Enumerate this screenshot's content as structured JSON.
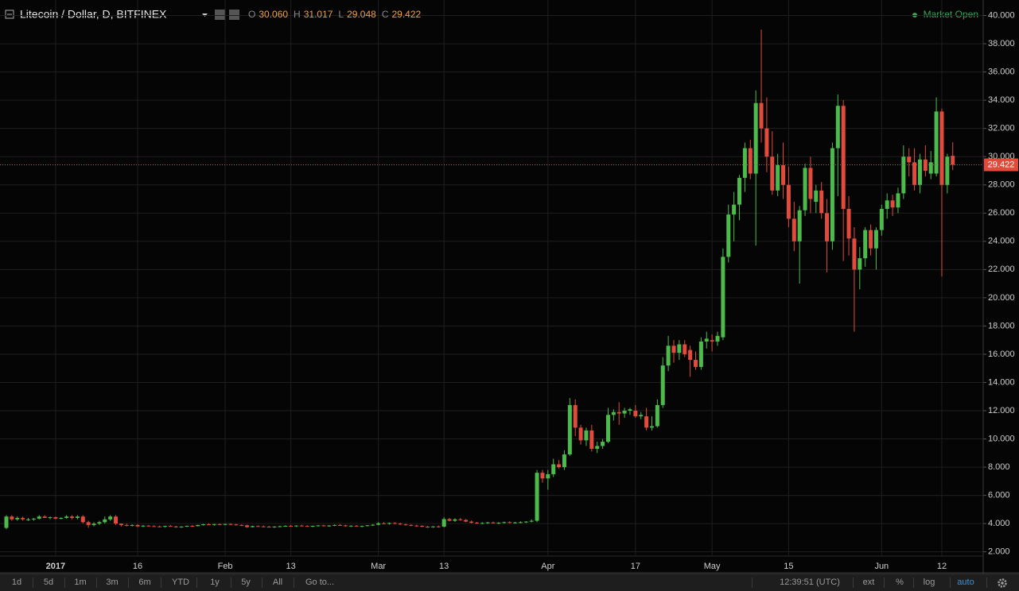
{
  "chart_data": {
    "type": "candlestick",
    "title": "Litecoin / Dollar, D, BITFINEX",
    "legend_values": [
      {
        "key": "O",
        "value": "30.060"
      },
      {
        "key": "H",
        "value": "31.017"
      },
      {
        "key": "L",
        "value": "29.048"
      },
      {
        "key": "C",
        "value": "29.422"
      }
    ],
    "status": "Market Open",
    "up_color": "#4cbb4c",
    "down_color": "#e04b3b",
    "price_line_color": "#e04b3b",
    "grid": true,
    "categories": [
      null,
      null,
      null,
      null,
      null,
      null,
      null,
      null,
      null,
      "2017",
      null,
      null,
      null,
      null,
      null,
      null,
      null,
      null,
      null,
      null,
      null,
      null,
      null,
      null,
      "16",
      null,
      null,
      null,
      null,
      null,
      null,
      null,
      null,
      null,
      null,
      null,
      null,
      null,
      null,
      null,
      "Feb",
      null,
      null,
      null,
      null,
      null,
      null,
      null,
      null,
      null,
      null,
      null,
      "13",
      null,
      null,
      null,
      null,
      null,
      null,
      null,
      null,
      null,
      null,
      null,
      null,
      null,
      null,
      null,
      "Mar",
      null,
      null,
      null,
      null,
      null,
      null,
      null,
      null,
      null,
      null,
      null,
      "13",
      null,
      null,
      null,
      null,
      null,
      null,
      null,
      null,
      null,
      null,
      null,
      null,
      null,
      null,
      null,
      null,
      null,
      null,
      "Apr",
      null,
      null,
      null,
      null,
      null,
      null,
      null,
      null,
      null,
      null,
      null,
      null,
      null,
      null,
      null,
      "17",
      null,
      null,
      null,
      null,
      null,
      null,
      null,
      null,
      null,
      null,
      null,
      null,
      null,
      "May",
      null,
      null,
      null,
      null,
      null,
      null,
      null,
      null,
      null,
      null,
      null,
      null,
      null,
      "15",
      null,
      null,
      null,
      null,
      null,
      null,
      null,
      null,
      null,
      null,
      null,
      null,
      null,
      null,
      null,
      null,
      "Jun",
      null,
      null,
      null,
      null,
      null,
      null,
      null,
      null,
      null,
      null,
      "12",
      null,
      null
    ],
    "open": [
      3.7,
      4.5,
      4.3,
      4.4,
      4.3,
      4.3,
      4.35,
      4.5,
      4.4,
      4.45,
      4.35,
      4.4,
      4.5,
      4.4,
      4.5,
      4.1,
      3.9,
      4.0,
      4.1,
      4.3,
      4.5,
      4.0,
      3.9,
      3.85,
      3.9,
      3.8,
      3.85,
      3.82,
      3.8,
      3.78,
      3.83,
      3.8,
      3.74,
      3.79,
      3.84,
      3.82,
      3.9,
      3.95,
      3.92,
      3.96,
      3.93,
      3.97,
      3.94,
      3.9,
      3.88,
      3.75,
      3.82,
      3.8,
      3.78,
      3.76,
      3.79,
      3.81,
      3.84,
      3.82,
      3.86,
      3.83,
      3.8,
      3.84,
      3.87,
      3.82,
      3.86,
      3.9,
      3.87,
      3.82,
      3.85,
      3.8,
      3.83,
      3.88,
      3.92,
      4.02,
      3.98,
      4.04,
      4.0,
      3.94,
      3.9,
      3.86,
      3.84,
      3.78,
      3.76,
      3.8,
      3.78,
      4.32,
      4.2,
      4.3,
      4.26,
      4.14,
      4.06,
      4.02,
      4.04,
      4.08,
      4.02,
      4.06,
      4.1,
      4.05,
      4.08,
      4.1,
      4.14,
      4.2,
      7.6,
      7.2,
      7.5,
      8.2,
      8.0,
      8.9,
      12.4,
      10.8,
      9.9,
      10.6,
      9.3,
      9.5,
      9.8,
      11.7,
      11.9,
      11.8,
      12.0,
      12.0,
      11.6,
      11.6,
      10.8,
      10.9,
      12.4,
      15.2,
      16.6,
      16.1,
      16.7,
      16.3,
      15.6,
      15.1,
      16.9,
      17.0,
      16.9,
      17.2,
      22.9,
      25.9,
      26.6,
      28.5,
      30.6,
      28.8,
      33.8,
      32.0,
      30.0,
      27.6,
      29.4,
      28.0,
      25.6,
      24.0,
      26.2,
      29.2,
      26.8,
      27.6,
      26.0,
      24.0,
      30.6,
      33.6,
      26.3,
      24.2,
      22.0,
      22.8,
      24.8,
      23.5,
      24.8,
      26.3,
      26.9,
      26.4,
      27.4,
      30.0,
      29.6,
      28.0,
      29.8,
      28.8,
      28.8,
      33.2,
      28.0,
      30.06
    ],
    "high": [
      4.6,
      4.6,
      4.5,
      4.5,
      4.4,
      4.4,
      4.6,
      4.6,
      4.5,
      4.5,
      4.45,
      4.6,
      4.6,
      4.6,
      4.6,
      4.2,
      4.1,
      4.2,
      4.5,
      4.6,
      4.6,
      4.0,
      4.0,
      3.95,
      3.95,
      3.9,
      3.9,
      3.88,
      3.86,
      3.85,
      3.9,
      3.84,
      3.82,
      3.86,
      3.9,
      3.92,
      3.98,
      4.02,
      3.98,
      4.0,
      4.0,
      4.02,
      3.98,
      3.95,
      3.92,
      3.85,
      3.88,
      3.86,
      3.84,
      3.82,
      3.85,
      3.88,
      3.9,
      3.88,
      3.92,
      3.88,
      3.86,
      3.9,
      3.92,
      3.9,
      3.94,
      3.96,
      3.92,
      3.88,
      3.9,
      3.86,
      3.9,
      3.96,
      4.1,
      4.1,
      4.08,
      4.1,
      4.06,
      4.0,
      3.96,
      3.92,
      3.88,
      3.84,
      3.82,
      3.86,
      4.45,
      4.4,
      4.38,
      4.4,
      4.32,
      4.22,
      4.12,
      4.1,
      4.12,
      4.14,
      4.1,
      4.14,
      4.16,
      4.12,
      4.16,
      4.18,
      4.3,
      7.8,
      7.8,
      7.8,
      8.6,
      8.5,
      9.2,
      12.9,
      12.8,
      11.0,
      10.8,
      11.0,
      9.8,
      10.0,
      12.2,
      12.1,
      12.6,
      12.2,
      12.2,
      12.4,
      11.9,
      12.2,
      11.6,
      12.8,
      15.8,
      17.3,
      17.0,
      17.0,
      17.0,
      16.6,
      16.2,
      17.2,
      17.6,
      17.4,
      17.6,
      23.5,
      26.6,
      27.5,
      28.7,
      31.0,
      31.2,
      34.7,
      39.0,
      34.2,
      31.8,
      30.2,
      31.0,
      29.3,
      26.8,
      26.5,
      29.5,
      30.0,
      28.0,
      28.2,
      27.0,
      31.0,
      34.4,
      34.0,
      27.2,
      25.0,
      23.6,
      25.0,
      25.2,
      25.0,
      26.6,
      27.4,
      27.3,
      27.8,
      30.8,
      30.6,
      30.6,
      30.2,
      30.8,
      30.4,
      34.2,
      33.4,
      30.2,
      31.017
    ],
    "low": [
      3.6,
      4.2,
      4.2,
      4.2,
      4.2,
      4.2,
      4.3,
      4.4,
      4.3,
      4.3,
      4.3,
      4.35,
      4.3,
      4.3,
      4.0,
      3.7,
      3.8,
      3.9,
      4.0,
      4.2,
      3.9,
      3.8,
      3.8,
      3.8,
      3.75,
      3.75,
      3.8,
      3.76,
      3.74,
      3.72,
      3.78,
      3.7,
      3.7,
      3.75,
      3.8,
      3.8,
      3.86,
      3.9,
      3.85,
      3.9,
      3.88,
      3.9,
      3.86,
      3.82,
      3.7,
      3.72,
      3.78,
      3.74,
      3.72,
      3.7,
      3.74,
      3.78,
      3.8,
      3.76,
      3.8,
      3.78,
      3.74,
      3.8,
      3.8,
      3.78,
      3.82,
      3.84,
      3.78,
      3.76,
      3.78,
      3.74,
      3.8,
      3.84,
      3.88,
      3.94,
      3.92,
      3.96,
      3.9,
      3.86,
      3.82,
      3.78,
      3.74,
      3.7,
      3.7,
      3.72,
      3.74,
      4.15,
      4.12,
      4.2,
      4.1,
      4.02,
      3.98,
      3.96,
      3.98,
      4.0,
      3.96,
      4.0,
      4.02,
      4.0,
      4.02,
      4.04,
      4.08,
      4.1,
      6.9,
      6.4,
      7.3,
      7.9,
      7.8,
      8.8,
      10.2,
      9.6,
      9.5,
      9.1,
      9.0,
      9.3,
      9.7,
      11.3,
      11.0,
      11.5,
      11.7,
      11.5,
      11.4,
      10.6,
      10.6,
      10.8,
      12.2,
      14.8,
      15.4,
      15.6,
      15.8,
      14.4,
      14.9,
      14.9,
      16.4,
      16.2,
      16.6,
      17.0,
      22.5,
      24.0,
      25.5,
      27.5,
      28.4,
      23.7,
      31.0,
      28.9,
      27.3,
      27.2,
      27.0,
      25.0,
      23.3,
      21.0,
      25.8,
      26.0,
      26.0,
      25.6,
      21.8,
      23.4,
      27.2,
      22.6,
      23.0,
      17.6,
      20.6,
      22.2,
      23.0,
      22.0,
      24.4,
      25.6,
      25.8,
      26.0,
      27.0,
      28.6,
      27.6,
      27.4,
      28.6,
      28.4,
      28.6,
      21.5,
      27.4,
      29.048
    ],
    "close": [
      4.5,
      4.3,
      4.4,
      4.3,
      4.3,
      4.35,
      4.5,
      4.4,
      4.45,
      4.35,
      4.4,
      4.5,
      4.4,
      4.5,
      4.1,
      3.9,
      4.0,
      4.1,
      4.3,
      4.5,
      4.0,
      3.9,
      3.85,
      3.9,
      3.8,
      3.85,
      3.82,
      3.8,
      3.78,
      3.83,
      3.8,
      3.74,
      3.79,
      3.84,
      3.82,
      3.9,
      3.95,
      3.92,
      3.96,
      3.93,
      3.97,
      3.94,
      3.9,
      3.88,
      3.75,
      3.82,
      3.8,
      3.78,
      3.76,
      3.79,
      3.81,
      3.84,
      3.82,
      3.86,
      3.83,
      3.8,
      3.84,
      3.87,
      3.82,
      3.86,
      3.9,
      3.87,
      3.82,
      3.85,
      3.8,
      3.83,
      3.88,
      3.92,
      4.02,
      3.98,
      4.04,
      4.0,
      3.94,
      3.9,
      3.86,
      3.84,
      3.78,
      3.76,
      3.8,
      3.78,
      4.32,
      4.2,
      4.3,
      4.26,
      4.14,
      4.06,
      4.02,
      4.04,
      4.08,
      4.02,
      4.06,
      4.1,
      4.05,
      4.08,
      4.1,
      4.14,
      4.2,
      7.6,
      7.2,
      7.5,
      8.2,
      8.0,
      8.9,
      12.4,
      10.8,
      9.9,
      10.6,
      9.3,
      9.5,
      9.8,
      11.7,
      11.9,
      11.8,
      12.0,
      12.1,
      11.6,
      11.7,
      10.8,
      10.9,
      12.4,
      15.2,
      16.6,
      16.1,
      16.7,
      16.0,
      15.6,
      15.1,
      16.9,
      17.1,
      16.9,
      17.3,
      22.9,
      25.9,
      26.6,
      28.5,
      30.6,
      28.8,
      33.8,
      32.0,
      30.0,
      27.6,
      29.4,
      28.0,
      25.6,
      24.0,
      26.2,
      29.2,
      27.0,
      27.6,
      26.0,
      24.0,
      30.6,
      33.6,
      26.3,
      24.2,
      22.0,
      22.8,
      24.8,
      23.5,
      24.8,
      26.3,
      26.9,
      26.4,
      27.4,
      30.0,
      29.6,
      28.0,
      29.8,
      29.0,
      29.6,
      33.2,
      28.0,
      30.0,
      29.422
    ],
    "ylim": [
      1.7,
      41.1
    ],
    "yticks": [
      {
        "value": 2,
        "label": "2.000"
      },
      {
        "value": 4,
        "label": "4.000"
      },
      {
        "value": 6,
        "label": "6.000"
      },
      {
        "value": 8,
        "label": "8.000"
      },
      {
        "value": 10,
        "label": "10.000"
      },
      {
        "value": 12,
        "label": "12.000"
      },
      {
        "value": 14,
        "label": "14.000"
      },
      {
        "value": 16,
        "label": "16.000"
      },
      {
        "value": 18,
        "label": "18.000"
      },
      {
        "value": 20,
        "label": "20.000"
      },
      {
        "value": 22,
        "label": "22.000"
      },
      {
        "value": 24,
        "label": "24.000"
      },
      {
        "value": 26,
        "label": "26.000"
      },
      {
        "value": 28,
        "label": "28.000"
      },
      {
        "value": 30,
        "label": "30.000"
      },
      {
        "value": 32,
        "label": "32.000"
      },
      {
        "value": 34,
        "label": "34.000"
      },
      {
        "value": 36,
        "label": "36.000"
      },
      {
        "value": 38,
        "label": "38.000"
      },
      {
        "value": 40,
        "label": "40.000"
      }
    ]
  },
  "toolbar": {
    "ranges": [
      "1d",
      "5d",
      "1m",
      "3m",
      "6m",
      "YTD",
      "1y",
      "5y",
      "All"
    ],
    "goto": "Go to...",
    "time": "12:39:51 (UTC)",
    "options": [
      "ext",
      "%",
      "log",
      "auto"
    ]
  }
}
